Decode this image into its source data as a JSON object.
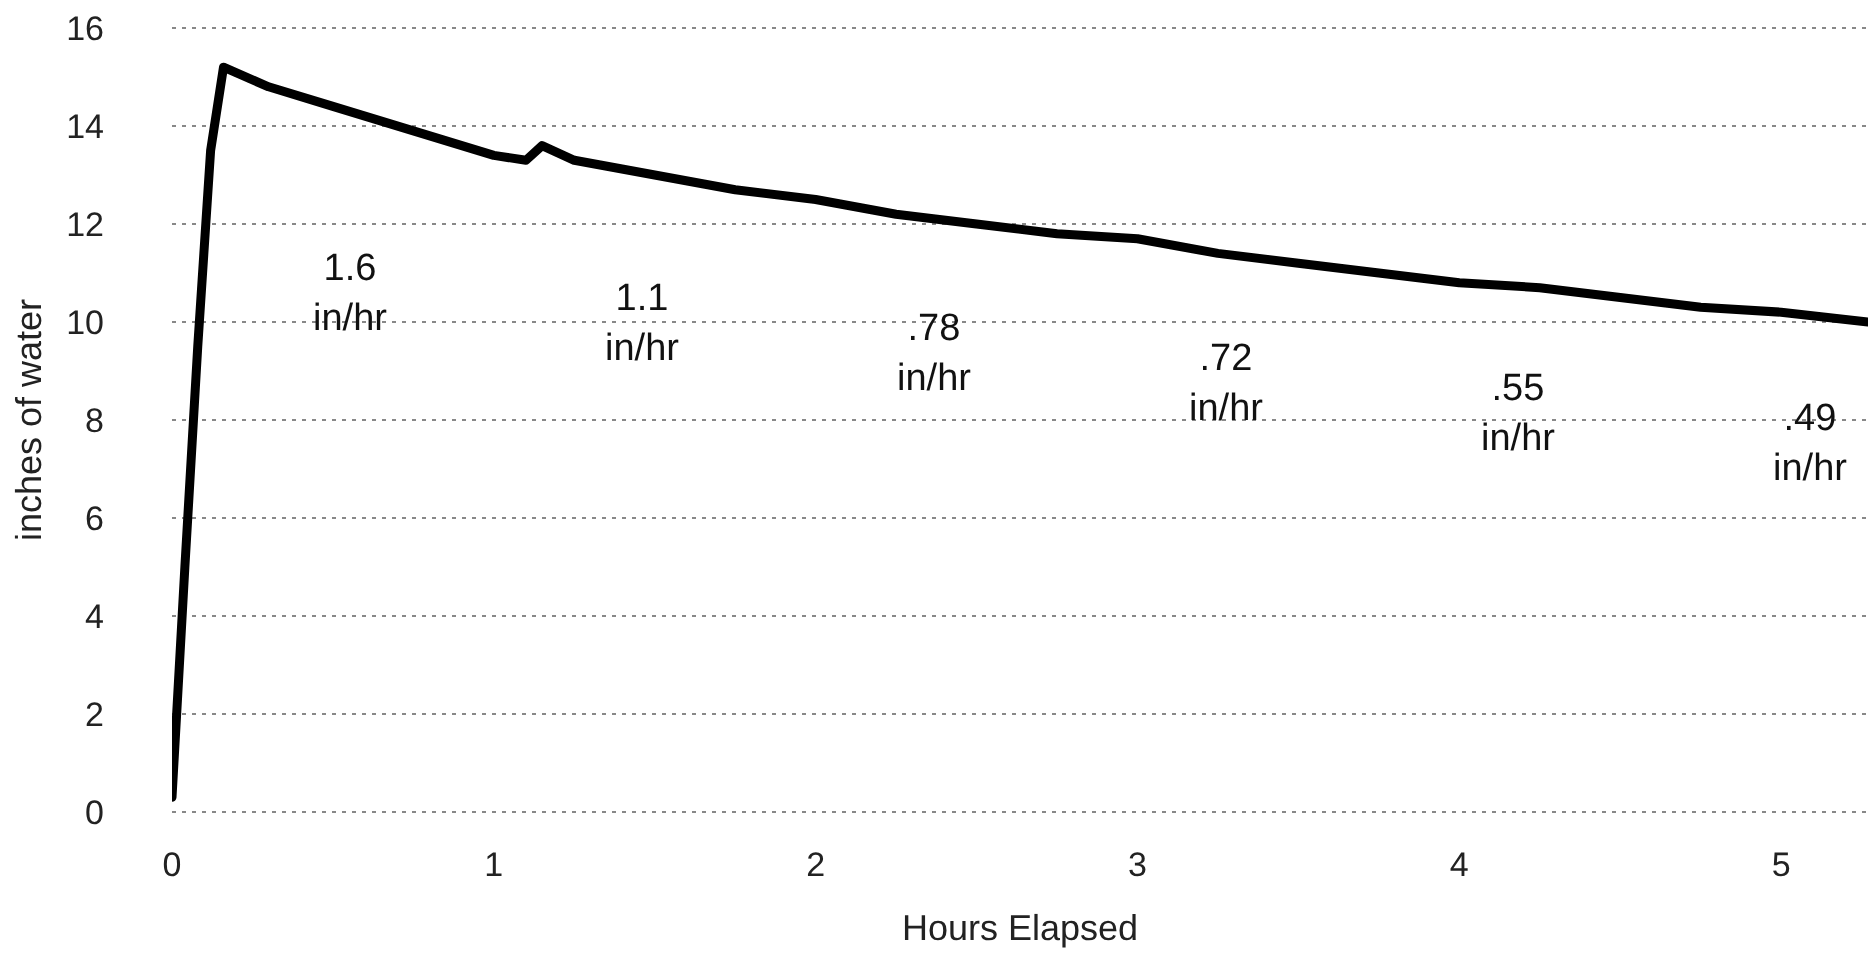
{
  "chart_data": {
    "type": "line",
    "xlabel": "Hours Elapsed",
    "ylabel": "inches of water",
    "x": [
      0,
      0.04,
      0.08,
      0.12,
      0.16,
      0.3,
      0.5,
      0.75,
      1,
      1.1,
      1.15,
      1.25,
      1.5,
      1.75,
      2,
      2.25,
      2.5,
      2.75,
      3,
      3.25,
      3.5,
      3.75,
      4,
      4.25,
      4.5,
      4.75,
      5,
      5.27
    ],
    "series": [
      {
        "color": "#000000",
        "values": [
          0.3,
          5,
          9.5,
          13.5,
          15.2,
          14.8,
          14.4,
          13.9,
          13.4,
          13.3,
          13.6,
          13.3,
          13.0,
          12.7,
          12.5,
          12.2,
          12.0,
          11.8,
          11.7,
          11.4,
          11.2,
          11.0,
          10.8,
          10.7,
          10.5,
          10.3,
          10.2,
          10.0
        ]
      }
    ],
    "xlim": [
      0,
      5.27
    ],
    "xticks": [
      0,
      1,
      2,
      3,
      4,
      5
    ],
    "ylim": [
      0,
      16
    ],
    "yticks": [
      0,
      2,
      4,
      6,
      8,
      10,
      12,
      14,
      16
    ],
    "grid": "y",
    "legend": false,
    "marker": "none",
    "line_style": "solid",
    "annotations": [
      "1.6 in/hr",
      "1.1 in/hr",
      ".78 in/hr",
      ".72 in/hr",
      ".55 in/hr",
      ".49 in/hr"
    ]
  }
}
